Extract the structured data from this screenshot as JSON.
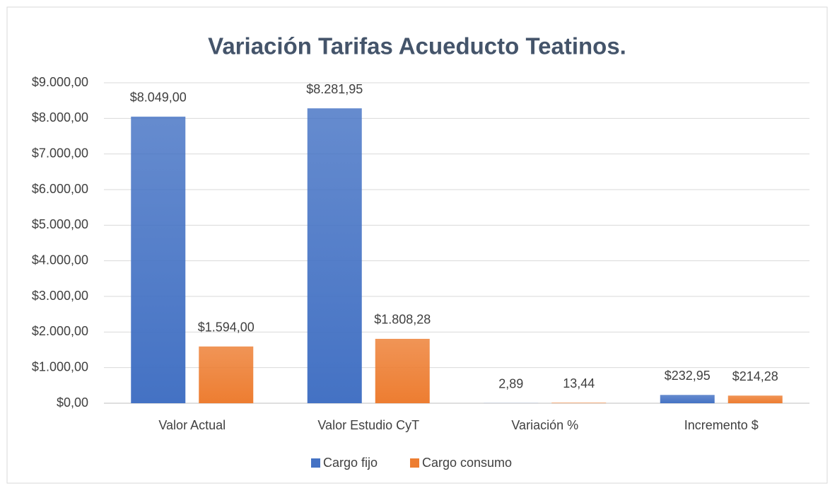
{
  "chart_data": {
    "type": "bar",
    "title": "Variación Tarifas Acueducto Teatinos.",
    "categories": [
      "Valor Actual",
      "Valor Estudio CyT",
      "Variación %",
      "Incremento $"
    ],
    "series": [
      {
        "name": "Cargo fijo",
        "color": "#4472c4",
        "values": [
          8049,
          8281.95,
          2.89,
          232.95
        ],
        "value_labels": [
          "$8.049,00",
          "$8.281,95",
          "2,89",
          "$232,95"
        ]
      },
      {
        "name": "Cargo consumo",
        "color": "#ed7d31",
        "values": [
          1594,
          1808.28,
          13.44,
          214.28
        ],
        "value_labels": [
          "$1.594,00",
          "$1.808,28",
          "13,44",
          "$214,28"
        ]
      }
    ],
    "ylim": [
      0,
      9000
    ],
    "yticks": [
      {
        "value": 0,
        "label": "$0,00"
      },
      {
        "value": 1000,
        "label": "$1.000,00"
      },
      {
        "value": 2000,
        "label": "$2.000,00"
      },
      {
        "value": 3000,
        "label": "$3.000,00"
      },
      {
        "value": 4000,
        "label": "$4.000,00"
      },
      {
        "value": 5000,
        "label": "$5.000,00"
      },
      {
        "value": 6000,
        "label": "$6.000,00"
      },
      {
        "value": 7000,
        "label": "$7.000,00"
      },
      {
        "value": 8000,
        "label": "$8.000,00"
      },
      {
        "value": 9000,
        "label": "$9.000,00"
      }
    ],
    "grid": true,
    "legend": "bottom"
  }
}
